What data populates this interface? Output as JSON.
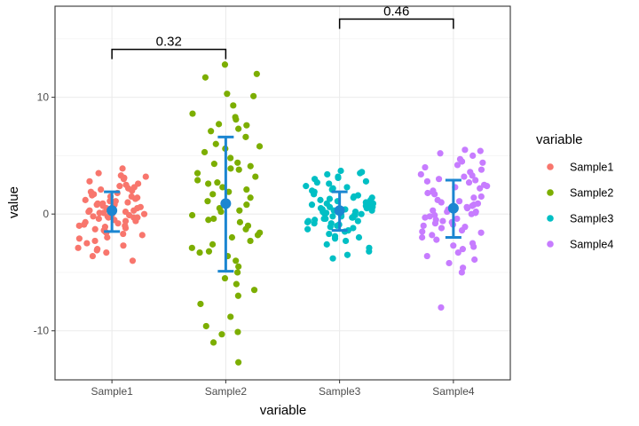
{
  "chart_data": {
    "type": "scatter",
    "xlabel": "variable",
    "ylabel": "value",
    "ylim": [
      -14.2,
      17.8
    ],
    "y_ticks": [
      -10,
      0,
      10
    ],
    "y_tick_labels": [
      "-10",
      "0",
      "10"
    ],
    "grid": true,
    "legend": {
      "title": "variable",
      "placement": "right"
    },
    "categories": [
      "Sample1",
      "Sample2",
      "Sample3",
      "Sample4"
    ],
    "series": [
      {
        "name": "Sample1",
        "color": "#F8766D",
        "mean": 0.3,
        "lower": -1.5,
        "upper": 1.9,
        "points": [
          3.9,
          3.5,
          3.3,
          3.2,
          3.1,
          3.0,
          2.8,
          2.6,
          2.5,
          2.3,
          2.2,
          2.1,
          2.0,
          1.9,
          1.8,
          1.7,
          1.6,
          1.5,
          1.4,
          1.3,
          1.2,
          1.1,
          1.0,
          0.9,
          0.8,
          0.7,
          0.6,
          0.5,
          0.5,
          0.4,
          0.3,
          0.3,
          0.2,
          0.1,
          0.1,
          0.0,
          0.0,
          -0.1,
          -0.1,
          -0.2,
          -0.2,
          -0.3,
          -0.3,
          -0.4,
          -0.5,
          -0.5,
          -0.6,
          -0.7,
          -0.8,
          -0.9,
          -1.0,
          -1.1,
          -1.2,
          -1.3,
          -1.4,
          -1.5,
          -1.6,
          -1.8,
          -2.0,
          -2.1,
          -2.3,
          -2.5,
          -2.7,
          -2.9,
          -3.0,
          -3.1,
          -3.3,
          -3.6,
          -4.0,
          1.5,
          0.8,
          -0.6,
          2.4,
          0.2,
          -1.0,
          1.1,
          -0.3,
          0.6,
          -1.7,
          0.9
        ]
      },
      {
        "name": "Sample2",
        "color": "#7CAE00",
        "mean": 0.9,
        "lower": -4.9,
        "upper": 6.6,
        "points": [
          12.8,
          12.0,
          11.7,
          10.3,
          10.1,
          9.3,
          8.6,
          8.3,
          8.1,
          7.7,
          7.6,
          7.3,
          7.1,
          6.6,
          5.8,
          5.6,
          5.3,
          4.8,
          4.4,
          4.1,
          3.9,
          3.8,
          3.5,
          3.2,
          2.9,
          2.6,
          2.3,
          2.1,
          1.7,
          1.4,
          1.1,
          0.8,
          0.5,
          0.2,
          -0.1,
          -0.4,
          -0.7,
          -1.0,
          -1.3,
          -1.6,
          -2.0,
          -2.3,
          -2.6,
          -2.9,
          -3.2,
          -3.6,
          -4.0,
          -4.5,
          -5.0,
          -5.5,
          -6.0,
          -6.5,
          -7.0,
          -7.7,
          -8.8,
          -9.6,
          -10.1,
          -10.3,
          -11.0,
          -12.7,
          6.0,
          2.7,
          -0.5,
          4.3,
          -3.3,
          1.9,
          -1.8,
          0.3
        ]
      },
      {
        "name": "Sample3",
        "color": "#00BFC4",
        "mean": 0.3,
        "lower": -1.4,
        "upper": 1.9,
        "points": [
          3.7,
          3.6,
          3.5,
          3.4,
          3.2,
          3.1,
          3.0,
          2.8,
          2.6,
          2.4,
          2.3,
          2.1,
          2.0,
          1.9,
          1.8,
          1.7,
          1.6,
          1.5,
          1.4,
          1.3,
          1.2,
          1.1,
          1.0,
          0.9,
          0.8,
          0.7,
          0.6,
          0.6,
          0.5,
          0.4,
          0.4,
          0.3,
          0.2,
          0.2,
          0.1,
          0.0,
          0.0,
          -0.1,
          -0.1,
          -0.2,
          -0.3,
          -0.3,
          -0.4,
          -0.5,
          -0.6,
          -0.7,
          -0.8,
          -0.9,
          -1.0,
          -1.1,
          -1.2,
          -1.4,
          -1.5,
          -1.7,
          -1.9,
          -2.1,
          -2.3,
          -2.6,
          -2.9,
          -3.2,
          -3.5,
          -3.8,
          1.0,
          0.1,
          -0.6,
          2.2,
          -0.2,
          0.7,
          1.4,
          -1.3,
          0.3,
          -0.8,
          2.7,
          0.5,
          -0.4,
          1.2,
          -0.1,
          0.9,
          -2.0,
          0.2
        ]
      },
      {
        "name": "Sample4",
        "color": "#C77CFF",
        "mean": 0.5,
        "lower": -2.0,
        "upper": 2.9,
        "points": [
          5.5,
          5.4,
          5.2,
          5.0,
          4.7,
          4.5,
          4.2,
          4.0,
          3.8,
          3.6,
          3.4,
          3.2,
          3.0,
          2.9,
          2.7,
          2.5,
          2.3,
          2.2,
          2.0,
          1.8,
          1.7,
          1.5,
          1.4,
          1.2,
          1.0,
          0.9,
          0.7,
          0.6,
          0.5,
          0.3,
          0.2,
          0.1,
          0.0,
          -0.1,
          -0.2,
          -0.3,
          -0.5,
          -0.6,
          -0.7,
          -0.9,
          -1.0,
          -1.2,
          -1.4,
          -1.6,
          -1.8,
          -2.0,
          -2.2,
          -2.5,
          -2.7,
          -3.0,
          -3.3,
          -3.6,
          -3.9,
          -4.2,
          -4.6,
          -5.0,
          -8.0,
          2.8,
          1.1,
          -0.4,
          3.3,
          0.4,
          -1.5,
          2.4,
          -2.8,
          0.8,
          -0.8,
          1.9,
          -1.1,
          4.4,
          0.2
        ]
      }
    ],
    "brackets": [
      {
        "from": "Sample1",
        "to": "Sample2",
        "y": 14.1,
        "label": "0.32"
      },
      {
        "from": "Sample3",
        "to": "Sample4",
        "y": 16.7,
        "label": "0.46"
      }
    ],
    "summary_color": "#1C86D1"
  }
}
